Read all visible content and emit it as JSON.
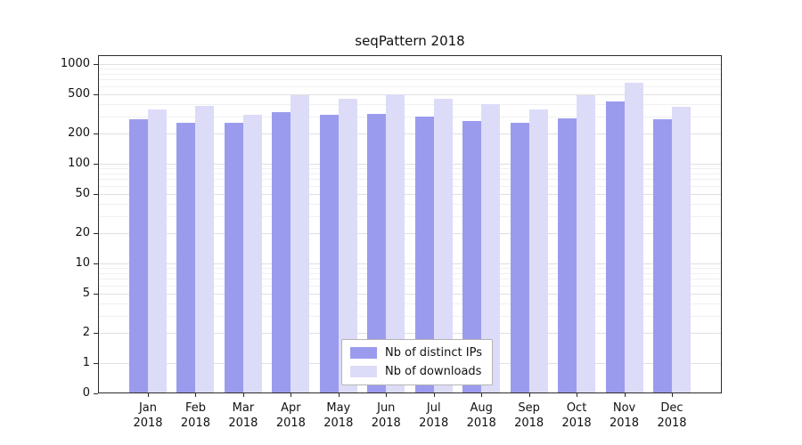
{
  "chart_data": {
    "type": "bar",
    "title": "seqPattern 2018",
    "yscale": "symlog",
    "grid": true,
    "legend_position": "lower center",
    "categories": [
      "Jan 2018",
      "Feb 2018",
      "Mar 2018",
      "Apr 2018",
      "May 2018",
      "Jun 2018",
      "Jul 2018",
      "Aug 2018",
      "Sep 2018",
      "Oct 2018",
      "Nov 2018",
      "Dec 2018"
    ],
    "series": [
      {
        "name": "Nb of distinct IPs",
        "color": "#9b9bee",
        "values": [
          280,
          260,
          260,
          330,
          310,
          315,
          300,
          270,
          260,
          285,
          420,
          280
        ]
      },
      {
        "name": "Nb of downloads",
        "color": "#dcdcf8",
        "values": [
          350,
          380,
          310,
          490,
          450,
          500,
          450,
          400,
          350,
          490,
          650,
          370
        ]
      }
    ],
    "yticks": [
      0,
      1,
      2,
      5,
      10,
      20,
      50,
      100,
      200,
      500,
      1000
    ],
    "ylim": [
      0,
      1000
    ]
  }
}
